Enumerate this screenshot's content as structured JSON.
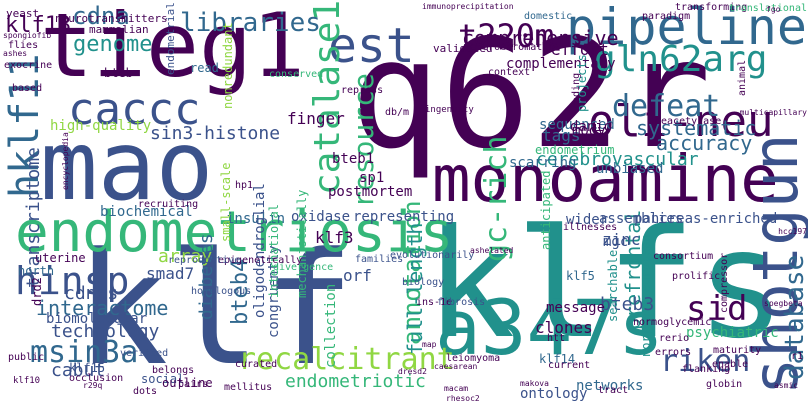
{
  "palette": {
    "dark_purple": "#440154",
    "indigo": "#3b528b",
    "blue": "#31688e",
    "teal": "#21918c",
    "green": "#35b779",
    "lime": "#90d743",
    "yellow": "#fde725"
  },
  "words": [
    {
      "id": "tieg1",
      "text": "tieg1",
      "color": "#440154"
    },
    {
      "id": "q62r",
      "text": "q62r",
      "color": "#440154"
    },
    {
      "id": "mao",
      "text": "mao",
      "color": "#3b528b"
    },
    {
      "id": "klf",
      "text": "klf",
      "color": "#3b528b"
    },
    {
      "id": "klfs",
      "text": "klfs",
      "color": "#21918c"
    },
    {
      "id": "monoamine",
      "text": "monoamine",
      "color": "#440154"
    },
    {
      "id": "endometriosis",
      "text": "endometriosis",
      "color": "#35b779"
    },
    {
      "id": "a347s",
      "text": "a347s",
      "color": "#21918c"
    },
    {
      "id": "pipeline",
      "text": "pipeline",
      "color": "#31688e"
    },
    {
      "id": "shotgun",
      "text": "shotgun",
      "color": "#3b528b"
    },
    {
      "id": "est",
      "text": "est",
      "color": "#3b528b"
    },
    {
      "id": "caccc",
      "text": "caccc",
      "color": "#3b528b"
    },
    {
      "id": "oli-neu",
      "text": "oli-neu",
      "color": "#440154"
    },
    {
      "id": "t220m",
      "text": "t220m",
      "color": "#440154"
    },
    {
      "id": "gln62arg",
      "text": "gln62arg",
      "color": "#21918c"
    },
    {
      "id": "hinsp",
      "text": "hinsp",
      "color": "#3b528b"
    },
    {
      "id": "hklf11",
      "text": "hklf11",
      "color": "#31688e"
    },
    {
      "id": "catalase1",
      "text": "catalase1",
      "color": "#35b779"
    },
    {
      "id": "recalcitrant",
      "text": "recalcitrant",
      "color": "#90d743"
    },
    {
      "id": "msin3a",
      "text": "msin3a",
      "color": "#31688e"
    },
    {
      "id": "gc-rich",
      "text": "gc-rich",
      "color": "#35b779"
    },
    {
      "id": "sid",
      "text": "sid",
      "color": "#440154"
    },
    {
      "id": "defeat",
      "text": "defeat",
      "color": "#31688e"
    },
    {
      "id": "resource",
      "text": "resource",
      "color": "#35b779"
    },
    {
      "id": "riken",
      "text": "riken",
      "color": "#3b528b"
    },
    {
      "id": "libraries",
      "text": "libraries",
      "color": "#31688e"
    },
    {
      "id": "annotation",
      "text": "annotation",
      "color": "#35b779"
    },
    {
      "id": "database",
      "text": "database",
      "color": "#31688e"
    },
    {
      "id": "cdna",
      "text": "cdna",
      "color": "#31688e"
    },
    {
      "id": "genome",
      "text": "genome",
      "color": "#21918c"
    },
    {
      "id": "klf13",
      "text": "klf13",
      "color": "#440154"
    },
    {
      "id": "interactome",
      "text": "interactome",
      "color": "#31688e"
    },
    {
      "id": "bteb4",
      "text": "bteb4",
      "color": "#31688e"
    },
    {
      "id": "full-length",
      "text": "full-length",
      "color": "#21918c"
    },
    {
      "id": "comprehensive",
      "text": "comprehensive",
      "color": "#440154"
    },
    {
      "id": "systematic",
      "text": "systematic",
      "color": "#31688e"
    },
    {
      "id": "accuracy",
      "text": "accuracy",
      "color": "#31688e"
    },
    {
      "id": "sin3-histone",
      "text": "sin3-histone",
      "color": "#3b528b"
    },
    {
      "id": "prefrontal",
      "text": "prefrontal",
      "color": "#21918c"
    },
    {
      "id": "cerebrovascular",
      "text": "cerebrovascular",
      "color": "#21918c"
    },
    {
      "id": "technology",
      "text": "technology",
      "color": "#3b528b"
    },
    {
      "id": "transcriptome",
      "text": "transcriptome",
      "color": "#3b528b"
    },
    {
      "id": "cdnas",
      "text": "cdnas",
      "color": "#3b528b"
    },
    {
      "id": "diabetes",
      "text": "diabetes",
      "color": "#31688e"
    },
    {
      "id": "cabut",
      "text": "cabut",
      "color": "#3b528b"
    },
    {
      "id": "endometriotic",
      "text": "endometriotic",
      "color": "#35b779"
    },
    {
      "id": "bteb3",
      "text": "bteb3",
      "color": "#3b528b"
    },
    {
      "id": "array",
      "text": "array",
      "color": "#90d743"
    },
    {
      "id": "klf3",
      "text": "klf3",
      "color": "#440154"
    },
    {
      "id": "smad7",
      "text": "smad7",
      "color": "#3b528b"
    },
    {
      "id": "tags",
      "text": "tags",
      "color": "#31688e"
    },
    {
      "id": "effort",
      "text": "effort",
      "color": "#440154"
    },
    {
      "id": "finger",
      "text": "finger",
      "color": "#440154"
    },
    {
      "id": "high-quality",
      "text": "high-quality",
      "color": "#90d743"
    },
    {
      "id": "orf",
      "text": "orf",
      "color": "#3b528b"
    },
    {
      "id": "zinc",
      "text": "zinc",
      "color": "#3b528b"
    },
    {
      "id": "clones",
      "text": "clones",
      "color": "#440154"
    },
    {
      "id": "biomolecular",
      "text": "biomolecular",
      "color": "#3b528b"
    },
    {
      "id": "insulin",
      "text": "insulin",
      "color": "#31688e"
    },
    {
      "id": "oxidase",
      "text": "oxidase",
      "color": "#3b528b"
    },
    {
      "id": "representing",
      "text": "representing",
      "color": "#3b528b"
    },
    {
      "id": "assemblies",
      "text": "assemblies",
      "color": "#3b528b"
    },
    {
      "id": "pancreas-enriched",
      "text": "pancreas-enriched",
      "color": "#3b528b"
    },
    {
      "id": "complementary",
      "text": "complementary",
      "color": "#440154"
    },
    {
      "id": "postmortem",
      "text": "postmortem",
      "color": "#440154"
    },
    {
      "id": "bteb1",
      "text": "bteb1",
      "color": "#440154"
    },
    {
      "id": "sp1",
      "text": "sp1",
      "color": "#440154"
    },
    {
      "id": "biochemical",
      "text": "biochemical",
      "color": "#31688e"
    },
    {
      "id": "message",
      "text": "message",
      "color": "#440154"
    },
    {
      "id": "wider",
      "text": "wider",
      "color": "#3b528b"
    },
    {
      "id": "collection",
      "text": "collection",
      "color": "#35b779"
    },
    {
      "id": "congruently",
      "text": "congruently",
      "color": "#3b528b"
    },
    {
      "id": "oligodendroglial",
      "text": "oligodendroglial",
      "color": "#3b528b"
    },
    {
      "id": "psychiatric",
      "text": "psychiatric",
      "color": "#35b779"
    },
    {
      "id": "networks",
      "text": "networks",
      "color": "#31688e"
    },
    {
      "id": "ontology",
      "text": "ontology",
      "color": "#3b528b"
    },
    {
      "id": "unbiased",
      "text": "unbiased",
      "color": "#31688e"
    },
    {
      "id": "scarring",
      "text": "scarring",
      "color": "#31688e"
    },
    {
      "id": "sequenced",
      "text": "sequenced",
      "color": "#31688e"
    },
    {
      "id": "danio",
      "text": "danio",
      "color": "#440154"
    },
    {
      "id": "mody",
      "text": "mody",
      "color": "#440154"
    },
    {
      "id": "mgc",
      "text": "mgc",
      "color": "#3b528b"
    },
    {
      "id": "klf14",
      "text": "klf14",
      "color": "#31688e"
    },
    {
      "id": "klf15",
      "text": "klf15",
      "color": "#3b528b"
    },
    {
      "id": "klf5",
      "text": "klf5",
      "color": "#31688e"
    },
    {
      "id": "social",
      "text": "social",
      "color": "#3b528b"
    },
    {
      "id": "outline",
      "text": "outline",
      "color": "#440154"
    },
    {
      "id": "uterine",
      "text": "uterine",
      "color": "#440154"
    },
    {
      "id": "north",
      "text": "north",
      "color": "#31688e"
    },
    {
      "id": "drd2",
      "text": "drd2",
      "color": "#440154"
    },
    {
      "id": "bteb",
      "text": "bteb",
      "color": "#440154"
    },
    {
      "id": "mammalian",
      "text": "mammalian",
      "color": "#440154"
    },
    {
      "id": "neurotransmitters",
      "text": "neurotransmitters",
      "color": "#440154"
    },
    {
      "id": "yeast",
      "text": "yeast",
      "color": "#440154"
    },
    {
      "id": "read",
      "text": "read",
      "color": "#31688e"
    },
    {
      "id": "nonredundant",
      "text": "nonredundant",
      "color": "#90d743"
    },
    {
      "id": "endometrial",
      "text": "endometrial",
      "color": "#3b528b"
    },
    {
      "id": "small-scale",
      "text": "small-scale",
      "color": "#90d743"
    },
    {
      "id": "international",
      "text": "international",
      "color": "#35b779"
    },
    {
      "id": "mechanistically",
      "text": "mechanistically",
      "color": "#35b779"
    },
    {
      "id": "northern-european",
      "text": "northern-european",
      "color": "#21918c"
    },
    {
      "id": "searchable",
      "text": "searchable",
      "color": "#21918c"
    },
    {
      "id": "projects",
      "text": "projects",
      "color": "#21918c"
    },
    {
      "id": "endometrium",
      "text": "endometrium",
      "color": "#35b779"
    },
    {
      "id": "anticipated",
      "text": "anticipated",
      "color": "#35b779"
    },
    {
      "id": "validated",
      "text": "validated",
      "color": "#440154"
    },
    {
      "id": "heterochromatin",
      "text": "heterochromatin",
      "color": "#440154"
    },
    {
      "id": "transforming",
      "text": "transforming",
      "color": "#440154"
    },
    {
      "id": "domestic",
      "text": "domestic",
      "color": "#31688e"
    },
    {
      "id": "deacetylase",
      "text": "deacetylase",
      "color": "#440154"
    },
    {
      "id": "consortium",
      "text": "consortium",
      "color": "#440154"
    },
    {
      "id": "prolific",
      "text": "prolific",
      "color": "#440154"
    },
    {
      "id": "verified",
      "text": "verified",
      "color": "#3b528b"
    },
    {
      "id": "ins-1e",
      "text": "ins-1e",
      "color": "#440154"
    },
    {
      "id": "fibrosis",
      "text": "fibrosis",
      "color": "#3b528b"
    },
    {
      "id": "biology",
      "text": "biology",
      "color": "#3b528b"
    },
    {
      "id": "divergence",
      "text": "divergence",
      "color": "#35b779"
    },
    {
      "id": "epigenetically",
      "text": "epigenetically",
      "color": "#440154"
    },
    {
      "id": "homologous",
      "text": "homologous",
      "color": "#3b528b"
    },
    {
      "id": "reproductive",
      "text": "reproductive",
      "color": "#3b528b"
    },
    {
      "id": "families",
      "text": "families",
      "color": "#3b528b"
    },
    {
      "id": "evolutionarily",
      "text": "evolutionarily",
      "color": "#3b528b"
    },
    {
      "id": "hp1",
      "text": "hp1",
      "color": "#440154"
    },
    {
      "id": "recruiting",
      "text": "recruiting",
      "color": "#440154"
    },
    {
      "id": "conserved",
      "text": "conserved",
      "color": "#35b779"
    },
    {
      "id": "repress",
      "text": "repress",
      "color": "#440154"
    },
    {
      "id": "context",
      "text": "context",
      "color": "#440154"
    },
    {
      "id": "coding",
      "text": "coding",
      "color": "#440154"
    },
    {
      "id": "db-m",
      "text": "db/m",
      "color": "#440154"
    },
    {
      "id": "ingenuity",
      "text": "ingenuity",
      "color": "#440154"
    },
    {
      "id": "exocrine",
      "text": "exocrine",
      "color": "#440154"
    },
    {
      "id": "based",
      "text": "based",
      "color": "#440154"
    },
    {
      "id": "flies",
      "text": "flies",
      "color": "#440154"
    },
    {
      "id": "klf10",
      "text": "klf10",
      "color": "#440154"
    },
    {
      "id": "public",
      "text": "public",
      "color": "#440154"
    },
    {
      "id": "occlusion",
      "text": "occlusion",
      "color": "#440154"
    },
    {
      "id": "dots",
      "text": "dots",
      "color": "#440154"
    },
    {
      "id": "pairs",
      "text": "pairs",
      "color": "#440154"
    },
    {
      "id": "belongs",
      "text": "belongs",
      "color": "#440154"
    },
    {
      "id": "curated",
      "text": "curated",
      "color": "#440154"
    },
    {
      "id": "htt",
      "text": "htt",
      "color": "#440154"
    },
    {
      "id": "current",
      "text": "current",
      "color": "#440154"
    },
    {
      "id": "tract",
      "text": "tract",
      "color": "#440154"
    },
    {
      "id": "errors",
      "text": "errors",
      "color": "#440154"
    },
    {
      "id": "enable",
      "text": "enable",
      "color": "#440154"
    },
    {
      "id": "globin",
      "text": "globin",
      "color": "#440154"
    },
    {
      "id": "flanking",
      "text": "flanking",
      "color": "#440154"
    },
    {
      "id": "rerio",
      "text": "rerio",
      "color": "#440154"
    },
    {
      "id": "maturity",
      "text": "maturity",
      "color": "#440154"
    },
    {
      "id": "r1",
      "text": "r1",
      "color": "#440154"
    },
    {
      "id": "compressor",
      "text": "compressor",
      "color": "#440154"
    },
    {
      "id": "translational",
      "text": "translational",
      "color": "#35b779"
    },
    {
      "id": "paradigm",
      "text": "paradigm",
      "color": "#440154"
    },
    {
      "id": "mellitus",
      "text": "mellitus",
      "color": "#440154"
    },
    {
      "id": "leiomyoma",
      "text": "leiomyoma",
      "color": "#440154"
    },
    {
      "id": "illnesses",
      "text": "illnesses",
      "color": "#440154"
    },
    {
      "id": "normoglycemic",
      "text": "normoglycemic",
      "color": "#440154"
    },
    {
      "id": "animal",
      "text": "animal",
      "color": "#440154"
    },
    {
      "id": "multicapillary",
      "text": "multicapillary",
      "color": "#440154"
    },
    {
      "id": "immunoprecipitation",
      "text": "immunoprecipitation",
      "color": "#440154"
    },
    {
      "id": "spegbeta",
      "text": "spegbeta",
      "color": "#440154"
    },
    {
      "id": "hcc197",
      "text": "hcc197",
      "color": "#440154"
    },
    {
      "id": "asmic",
      "text": "asmic",
      "color": "#440154"
    },
    {
      "id": "ashelated",
      "text": "ashelated",
      "color": "#440154"
    },
    {
      "id": "macam",
      "text": "macam",
      "color": "#440154"
    },
    {
      "id": "rhesoc2",
      "text": "rhesoc2",
      "color": "#440154"
    },
    {
      "id": "makova",
      "text": "makova",
      "color": "#440154"
    },
    {
      "id": "caesarean",
      "text": "caesarean",
      "color": "#440154"
    },
    {
      "id": "dresd2",
      "text": "dresd2",
      "color": "#440154"
    },
    {
      "id": "encyclopedia",
      "text": "encyclopedia",
      "color": "#440154"
    },
    {
      "id": "spongiofib",
      "text": "spongiofib",
      "color": "#440154"
    },
    {
      "id": "ashes",
      "text": "ashes",
      "color": "#440154"
    },
    {
      "id": "map",
      "text": "map",
      "color": "#440154"
    },
    {
      "id": "r29q",
      "text": "r29q",
      "color": "#440154"
    },
    {
      "id": "fgo",
      "text": "fgo",
      "color": "#440154"
    }
  ]
}
